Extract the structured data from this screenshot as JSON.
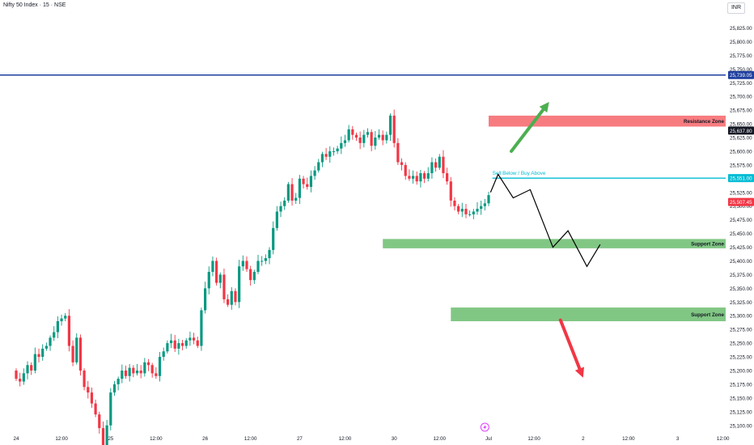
{
  "header": {
    "title": "Nifty 50 Index · 15 · NSE",
    "currency": "INR"
  },
  "colors": {
    "up": "#089981",
    "down": "#f23645",
    "hline": "#1e3f9e",
    "resistance": "#f77c80",
    "support": "#81c784",
    "signal_line": "#00bcd4",
    "arrow_up": "#4caf50",
    "arrow_down": "#f23645",
    "projection": "#000000"
  },
  "price_axis": {
    "ticks": [
      "25,825.00",
      "25,800.00",
      "25,775.00",
      "25,750.00",
      "25,725.00",
      "25,700.00",
      "25,675.00",
      "25,650.00",
      "25,625.00",
      "25,600.00",
      "25,575.00",
      "25,550.00",
      "25,525.00",
      "25,500.00",
      "25,475.00",
      "25,450.00",
      "25,425.00",
      "25,400.00",
      "25,375.00",
      "25,350.00",
      "25,325.00",
      "25,300.00",
      "25,275.00",
      "25,250.00",
      "25,225.00",
      "25,200.00",
      "25,175.00",
      "25,150.00",
      "25,125.00",
      "25,100.00"
    ],
    "ticks_values": [
      25825,
      25800,
      25775,
      25750,
      25725,
      25700,
      25675,
      25650,
      25625,
      25600,
      25575,
      25550,
      25525,
      25500,
      25475,
      25450,
      25425,
      25400,
      25375,
      25350,
      25325,
      25300,
      25275,
      25250,
      25225,
      25200,
      25175,
      25150,
      25125,
      25100
    ],
    "badges": [
      {
        "text": "25,739.05",
        "value": 25739.05,
        "color": "#1e3f9e"
      },
      {
        "text": "25,637.80",
        "value": 25637.8,
        "color": "#131722"
      },
      {
        "text": "25,551.00",
        "value": 25551.0,
        "color": "#00bcd4"
      },
      {
        "text": "25,507.45",
        "value": 25507.45,
        "color": "#f23645"
      }
    ]
  },
  "time_axis": {
    "labels": [
      "24",
      "12:00",
      "25",
      "12:00",
      "26",
      "12:00",
      "27",
      "12:00",
      "30",
      "12:00",
      "Jul",
      "12:00",
      "2",
      "12:00",
      "3",
      "12:00"
    ],
    "label_bars": [
      0,
      12,
      25,
      37,
      50,
      62,
      75,
      87,
      100,
      112,
      125,
      137,
      150,
      162,
      175,
      187
    ]
  },
  "zones": {
    "resistance": {
      "label": "Resistance Zone",
      "low": 25645,
      "high": 25665,
      "start_bar": 125
    },
    "support_1": {
      "label": "Support Zone",
      "low": 25423,
      "high": 25440,
      "start_bar": 97
    },
    "support_2": {
      "label": "Support Zone",
      "low": 25290,
      "high": 25315,
      "start_bar": 115
    }
  },
  "annotations": {
    "signal_text": "Sell Below / Buy Above",
    "signal_level": 25551.0,
    "signal_start_bar": 126,
    "hline_level": 25739.05,
    "projection_path": [
      [
        125.5,
        25525
      ],
      [
        127.5,
        25558
      ],
      [
        131.5,
        25515
      ],
      [
        136,
        25530
      ],
      [
        142,
        25425
      ],
      [
        146,
        25455
      ],
      [
        151,
        25390
      ],
      [
        154.5,
        25430
      ]
    ],
    "arrow_up": {
      "from": [
        131,
        25600
      ],
      "to": [
        141,
        25690
      ]
    },
    "arrow_down": {
      "from": [
        144,
        25292
      ],
      "to": [
        150,
        25187
      ]
    }
  },
  "chart_data": {
    "type": "candlestick",
    "interval": "15",
    "open": [
      25200,
      25185,
      25180,
      25195,
      25210,
      25200,
      25230,
      25225,
      25240,
      25245,
      25260,
      25270,
      25290,
      25295,
      25300,
      25245,
      25215,
      25260,
      25200,
      25170,
      25160,
      25140,
      25120,
      25095,
      25060,
      25100,
      25160,
      25175,
      25185,
      25200,
      25190,
      25205,
      25195,
      25200,
      25195,
      25215,
      25210,
      25195,
      25190,
      25225,
      25235,
      25250,
      25255,
      25240,
      25250,
      25245,
      25255,
      25260,
      25255,
      25245,
      25310,
      25350,
      25380,
      25400,
      25360,
      25375,
      25330,
      25320,
      25345,
      25325,
      25390,
      25400,
      25385,
      25365,
      25380,
      25400,
      25400,
      25405,
      25420,
      25460,
      25490,
      25500,
      25510,
      25540,
      25510,
      25515,
      25550,
      25540,
      25535,
      25555,
      25565,
      25580,
      25595,
      25590,
      25600,
      25600,
      25605,
      25615,
      25620,
      25640,
      25630,
      25625,
      25615,
      25630,
      25635,
      25610,
      25625,
      25630,
      25620,
      25630,
      25665,
      25615,
      25580,
      25575,
      25555,
      25550,
      25555,
      25545,
      25560,
      25550,
      25560,
      25580,
      25570,
      25590,
      25560,
      25545,
      25510,
      25500,
      25490,
      25495,
      25485,
      25485,
      25490,
      25495,
      25500,
      25505
    ],
    "close": [
      25185,
      25180,
      25195,
      25210,
      25200,
      25230,
      25225,
      25240,
      25245,
      25260,
      25270,
      25290,
      25295,
      25300,
      25245,
      25215,
      25260,
      25200,
      25170,
      25160,
      25140,
      25120,
      25095,
      25060,
      25100,
      25160,
      25175,
      25185,
      25200,
      25190,
      25205,
      25195,
      25200,
      25195,
      25215,
      25210,
      25195,
      25190,
      25225,
      25235,
      25250,
      25255,
      25240,
      25250,
      25245,
      25255,
      25260,
      25255,
      25245,
      25310,
      25350,
      25380,
      25400,
      25360,
      25375,
      25330,
      25320,
      25345,
      25325,
      25390,
      25400,
      25385,
      25365,
      25380,
      25400,
      25400,
      25405,
      25420,
      25460,
      25490,
      25500,
      25510,
      25540,
      25510,
      25515,
      25550,
      25540,
      25535,
      25555,
      25565,
      25580,
      25595,
      25590,
      25600,
      25600,
      25605,
      25615,
      25620,
      25640,
      25630,
      25625,
      25615,
      25630,
      25635,
      25610,
      25625,
      25630,
      25620,
      25630,
      25665,
      25615,
      25580,
      25575,
      25555,
      25550,
      25555,
      25545,
      25560,
      25550,
      25560,
      25580,
      25570,
      25590,
      25560,
      25545,
      25510,
      25500,
      25490,
      25495,
      25485,
      25485,
      25490,
      25495,
      25500,
      25505,
      25520
    ]
  }
}
